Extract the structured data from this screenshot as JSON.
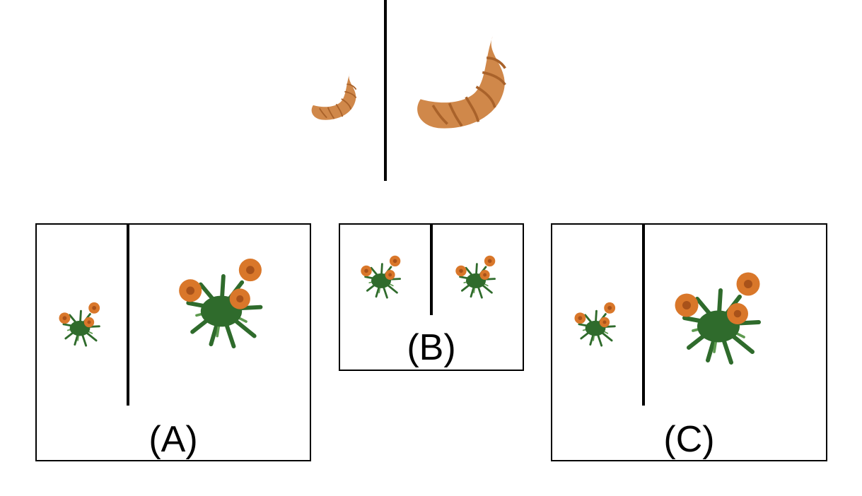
{
  "prompt": {
    "left_item": "croissant-small-icon",
    "right_item": "croissant-large-icon"
  },
  "options": [
    {
      "label": "(A)",
      "left_item": "flower-bush-small-icon",
      "right_item": "flower-bush-large-icon"
    },
    {
      "label": "(B)",
      "left_item": "flower-bush-small-icon",
      "right_item": "flower-bush-small-icon"
    },
    {
      "label": "(C)",
      "left_item": "flower-bush-small-icon",
      "right_item": "flower-bush-large-icon"
    }
  ],
  "colors": {
    "croissant": "#d0884a",
    "croissant_dark": "#a9622a",
    "leaf": "#2f6b2c",
    "leaf_light": "#5d9a4f",
    "petal": "#d9772a",
    "petal_dark": "#a8521a"
  }
}
